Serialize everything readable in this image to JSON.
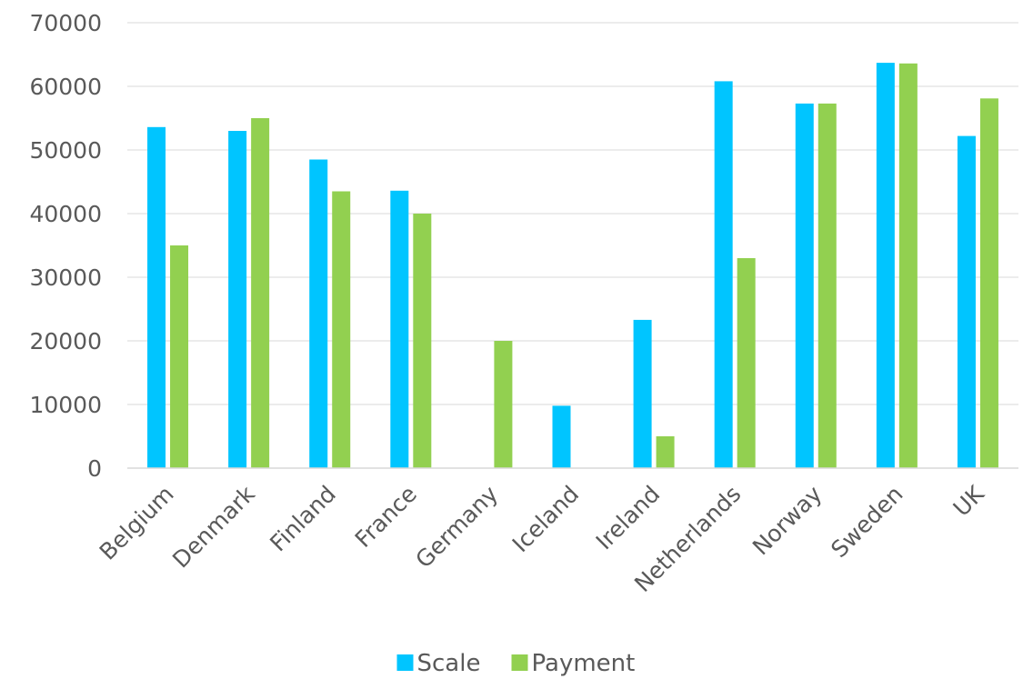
{
  "chart_data": {
    "type": "bar",
    "title": "",
    "xlabel": "",
    "ylabel": "",
    "categories": [
      "Belgium",
      "Denmark",
      "Finland",
      "France",
      "Germany",
      "Iceland",
      "Ireland",
      "Netherlands",
      "Norway",
      "Sweden",
      "UK"
    ],
    "series": [
      {
        "name": "Scale",
        "color": "#00c5ff",
        "values": [
          53600,
          53000,
          48500,
          43600,
          null,
          9800,
          23300,
          60800,
          57300,
          63700,
          52200
        ]
      },
      {
        "name": "Payment",
        "color": "#92d050",
        "values": [
          35000,
          55000,
          43500,
          40000,
          20000,
          null,
          5000,
          33000,
          57300,
          63600,
          58100
        ]
      }
    ],
    "ylim": [
      0,
      70000
    ],
    "yticks": [
      0,
      10000,
      20000,
      30000,
      40000,
      50000,
      60000,
      70000
    ],
    "ytick_labels": [
      "0",
      "10000",
      "20000",
      "30000",
      "40000",
      "50000",
      "60000",
      "70000"
    ],
    "grid": true,
    "legend_position": "bottom",
    "category_label_rotation": "diagonal"
  }
}
